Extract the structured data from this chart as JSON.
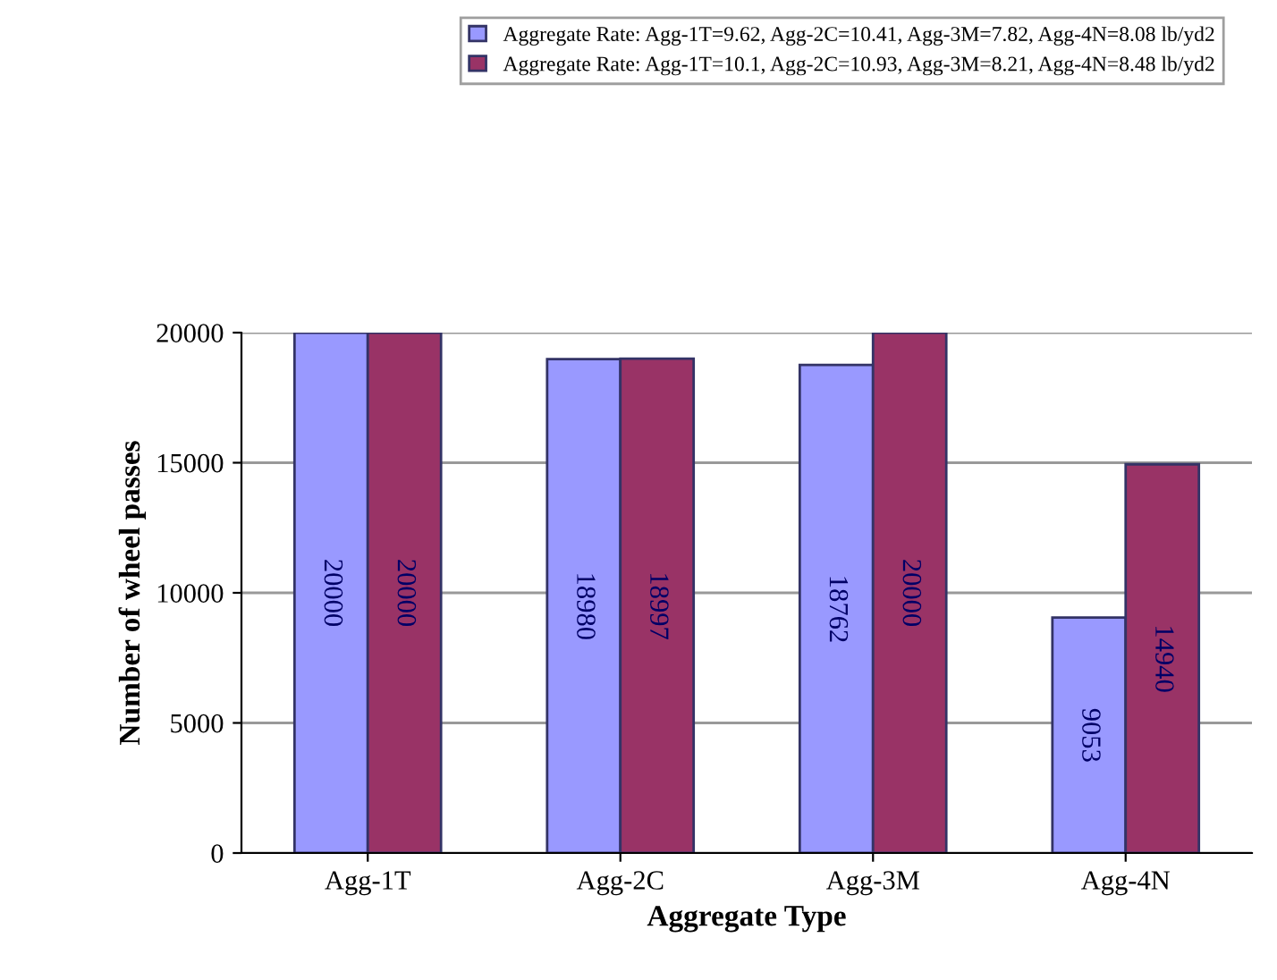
{
  "chart_data": {
    "type": "bar",
    "xlabel": "Aggregate Type",
    "ylabel": "Number of wheel passes",
    "categories": [
      "Agg-1T",
      "Agg-2C",
      "Agg-3M",
      "Agg-4N"
    ],
    "series": [
      {
        "name": "Aggregate Rate: Agg-1T=9.62, Agg-2C=10.41, Agg-3M=7.82, Agg-4N=8.08 lb/yd2",
        "color": "#9999ff",
        "values": [
          20000,
          18980,
          18762,
          9053
        ]
      },
      {
        "name": "Aggregate Rate: Agg-1T=10.1, Agg-2C=10.93, Agg-3M=8.21, Agg-4N=8.48 lb/yd2",
        "color": "#993366",
        "values": [
          20000,
          18997,
          20000,
          14940
        ]
      }
    ],
    "ylim": [
      0,
      20000
    ],
    "yticks": [
      0,
      5000,
      10000,
      15000,
      20000
    ],
    "grid": "y",
    "legend": "top right",
    "data_labels": true
  }
}
